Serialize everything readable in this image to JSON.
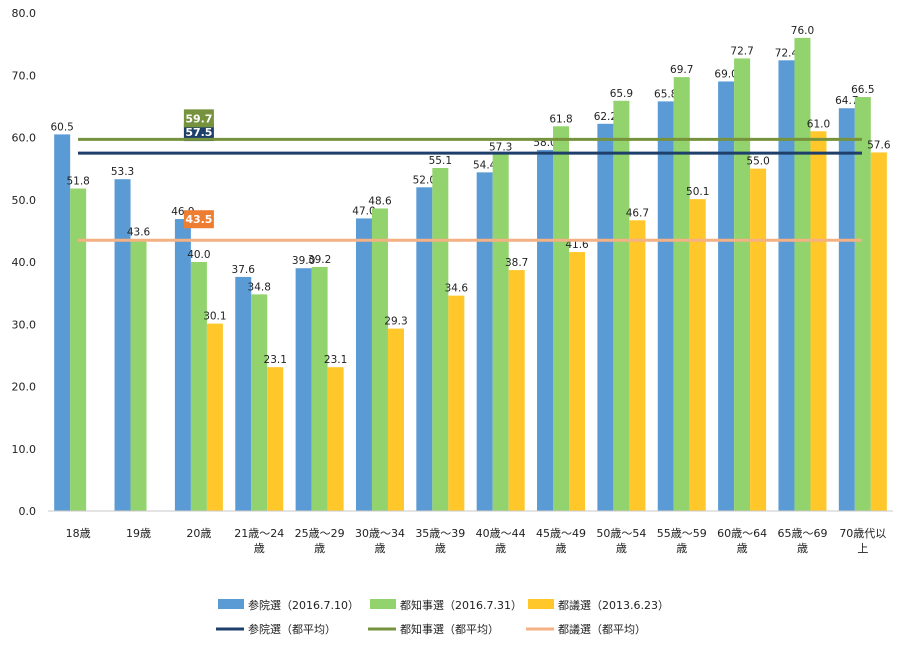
{
  "chart_data": {
    "type": "bar",
    "categories": [
      "18歳",
      "19歳",
      "20歳",
      "21歳～24歳",
      "25歳～29歳",
      "30歳～34歳",
      "35歳～39歳",
      "40歳～44歳",
      "45歳～49歳",
      "50歳～54歳",
      "55歳～59歳",
      "60歳～64歳",
      "65歳～69歳",
      "70歳代以上"
    ],
    "category_lines": [
      [
        "18歳"
      ],
      [
        "19歳"
      ],
      [
        "20歳"
      ],
      [
        "21歳～24",
        "歳"
      ],
      [
        "25歳～29",
        "歳"
      ],
      [
        "30歳～34",
        "歳"
      ],
      [
        "35歳～39",
        "歳"
      ],
      [
        "40歳～44",
        "歳"
      ],
      [
        "45歳～49",
        "歳"
      ],
      [
        "50歳～54",
        "歳"
      ],
      [
        "55歳～59",
        "歳"
      ],
      [
        "60歳～64",
        "歳"
      ],
      [
        "65歳～69",
        "歳"
      ],
      [
        "70歳代以",
        "上"
      ]
    ],
    "series": [
      {
        "name": "参院選（2016.7.10）",
        "color": "#5b9bd5",
        "values": [
          60.5,
          53.3,
          46.9,
          37.6,
          39.0,
          47.0,
          52.0,
          54.4,
          58.0,
          62.2,
          65.8,
          69.0,
          72.4,
          64.7
        ]
      },
      {
        "name": "都知事選（2016.7.31）",
        "color": "#92d36e",
        "values": [
          51.8,
          43.6,
          40.0,
          34.8,
          39.2,
          48.6,
          55.1,
          57.3,
          61.8,
          65.9,
          69.7,
          72.7,
          76.0,
          66.5
        ]
      },
      {
        "name": "都議選（2013.6.23）",
        "color": "#ffc729",
        "values": [
          null,
          null,
          30.1,
          23.1,
          23.1,
          29.3,
          34.6,
          38.7,
          41.6,
          46.7,
          50.1,
          55.0,
          61.0,
          57.6
        ]
      }
    ],
    "reference_lines": [
      {
        "name": "参院選（都平均）",
        "value": 57.5,
        "label": "57.5",
        "color": "#1f3f6b"
      },
      {
        "name": "都知事選（都平均）",
        "value": 59.7,
        "label": "59.7",
        "color": "#76923c"
      },
      {
        "name": "都議選（都平均）",
        "value": 43.5,
        "label": "43.5",
        "color": "#f4b183",
        "label_color": "#ed7d31"
      }
    ],
    "y_ticks": [
      "0.0",
      "10.0",
      "20.0",
      "30.0",
      "40.0",
      "50.0",
      "60.0",
      "70.0",
      "80.0"
    ],
    "ylim": [
      0,
      80
    ],
    "grid": false,
    "legend_position": "bottom",
    "title": "",
    "xlabel": "",
    "ylabel": ""
  }
}
